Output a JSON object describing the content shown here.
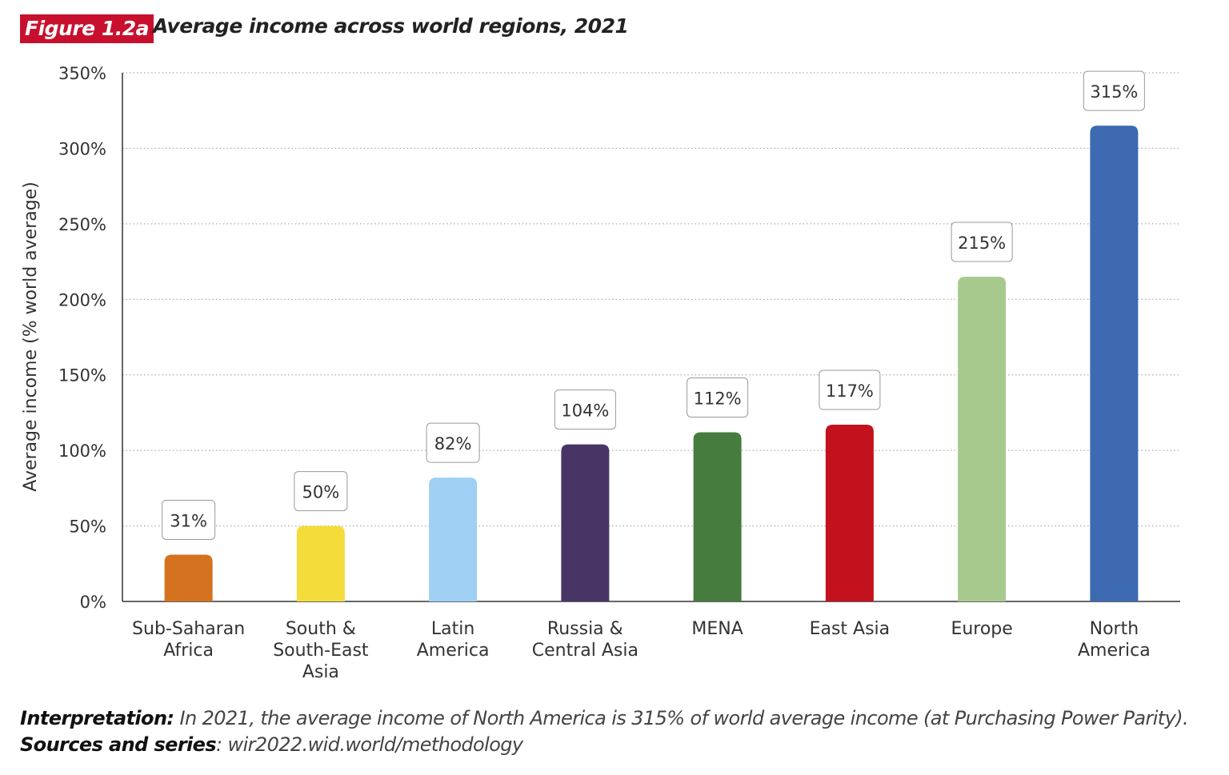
{
  "figure_tag": "Figure 1.2a",
  "figure_title": "Average income across world regions, 2021",
  "chart_data": {
    "type": "bar",
    "title": "Average income across world regions, 2021",
    "ylabel": "Average income (% world average)",
    "xlabel": "",
    "ylim": [
      0,
      350
    ],
    "yticks": [
      0,
      50,
      100,
      150,
      200,
      250,
      300,
      350
    ],
    "ytick_labels": [
      "0%",
      "50%",
      "100%",
      "150%",
      "200%",
      "250%",
      "300%",
      "350%"
    ],
    "grid": "horizontal dotted",
    "categories": [
      [
        "Sub-Saharan",
        "Africa"
      ],
      [
        "South &",
        "South-East",
        "Asia"
      ],
      [
        "Latin",
        "America"
      ],
      [
        "Russia &",
        "Central Asia"
      ],
      [
        "MENA"
      ],
      [
        "East Asia"
      ],
      [
        "Europe"
      ],
      [
        "North",
        "America"
      ]
    ],
    "values": [
      31,
      50,
      82,
      104,
      112,
      117,
      215,
      315
    ],
    "data_labels": [
      "31%",
      "50%",
      "82%",
      "104%",
      "112%",
      "117%",
      "215%",
      "315%"
    ],
    "colors": [
      "#D4721F",
      "#F4DC3A",
      "#A0D0F4",
      "#483566",
      "#467C3D",
      "#C3111D",
      "#A7C98E",
      "#3D6AB0"
    ]
  },
  "note": {
    "interpretation_label": "Interpretation:",
    "interpretation_text": " In 2021, the average income of North America is 315% of world average income (at Purchasing Power Parity). ",
    "sources_label": "Sources and series",
    "sources_text": ": wir2022.wid.world/methodology"
  }
}
